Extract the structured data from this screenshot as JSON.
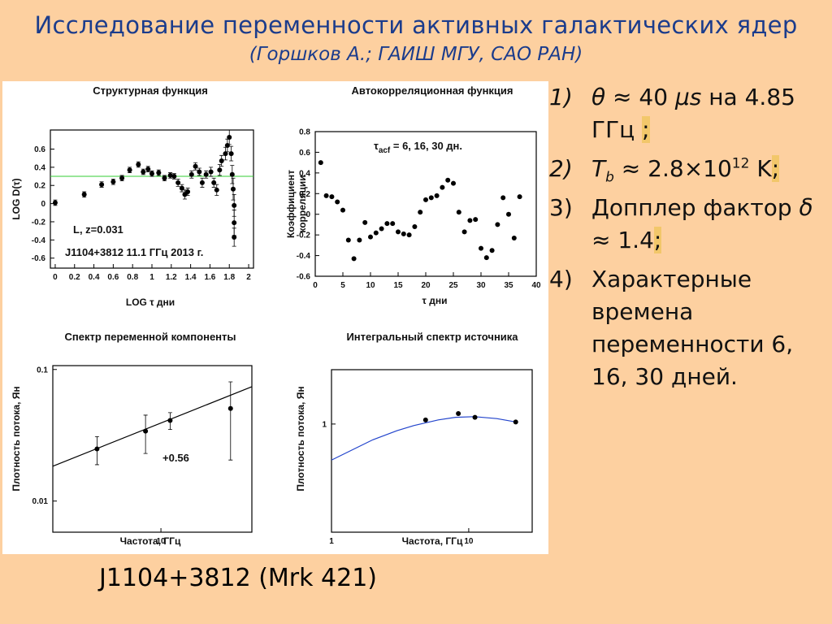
{
  "slide": {
    "title": "Исследование переменности активных галактических ядер",
    "subtitle": "(Горшков А.; ГАИШ МГУ, САО РАН)",
    "items": [
      {
        "number": "1)",
        "parts": [
          "θ",
          " ≈ 40 ",
          "μs",
          " на 4.85 ГГц ",
          ";"
        ]
      },
      {
        "number": "2)",
        "parts": [
          "T",
          "b",
          " ≈ 2.8×10",
          "12",
          " K",
          ";"
        ]
      },
      {
        "number": "3)",
        "parts": [
          "Допплер фактор ",
          "δ",
          " ≈ 1.4",
          ";"
        ]
      },
      {
        "number": "4)",
        "parts": [
          "Характерные времена переменности 6, 16, 30 дней."
        ]
      }
    ],
    "caption": "J1104+3812 (Mrk 421)"
  },
  "chart_data": [
    {
      "type": "scatter",
      "title": "Структурная функция",
      "xlabel": "LOG τ дни",
      "ylabel": "LOG D(τ)",
      "annotations": [
        "L,  z=0.031",
        "J1104+3812  11.1 ГГц  2013 г."
      ],
      "x": [
        0,
        0.3,
        0.48,
        0.6,
        0.69,
        0.77,
        0.86,
        0.91,
        0.96,
        1.0,
        1.07,
        1.13,
        1.19,
        1.23,
        1.27,
        1.31,
        1.34,
        1.37,
        1.41,
        1.45,
        1.49,
        1.52,
        1.56,
        1.61,
        1.64,
        1.67,
        1.7,
        1.72,
        1.76,
        1.78,
        1.8,
        1.82,
        1.83,
        1.84,
        1.85,
        1.85,
        1.85
      ],
      "values": [
        0.01,
        0.1,
        0.21,
        0.24,
        0.28,
        0.37,
        0.43,
        0.35,
        0.38,
        0.33,
        0.34,
        0.28,
        0.31,
        0.3,
        0.23,
        0.17,
        0.1,
        0.13,
        0.32,
        0.41,
        0.35,
        0.23,
        0.32,
        0.35,
        0.23,
        0.15,
        0.37,
        0.47,
        0.55,
        0.64,
        0.73,
        0.55,
        0.32,
        0.16,
        -0.02,
        -0.21,
        -0.37
      ],
      "errors": [
        0.03,
        0.03,
        0.03,
        0.03,
        0.03,
        0.03,
        0.03,
        0.03,
        0.03,
        0.03,
        0.03,
        0.03,
        0.03,
        0.03,
        0.04,
        0.04,
        0.05,
        0.04,
        0.04,
        0.04,
        0.04,
        0.05,
        0.04,
        0.05,
        0.05,
        0.06,
        0.06,
        0.06,
        0.07,
        0.07,
        0.08,
        0.08,
        0.1,
        0.12,
        0.12,
        0.14,
        0.1
      ],
      "hline": 0.3,
      "hline_color": "#33cc33",
      "color": "#000000",
      "xlim": [
        -0.05,
        2.05
      ],
      "ylim": [
        -0.71,
        0.81
      ],
      "xticks": [
        0,
        0.2,
        0.4,
        0.6,
        0.8,
        1,
        1.2,
        1.4,
        1.6,
        1.8,
        2
      ],
      "yticks": [
        -0.6,
        -0.4,
        -0.2,
        0,
        0.2,
        0.4,
        0.6
      ]
    },
    {
      "type": "scatter",
      "title": "Автокорреляционная функция",
      "xlabel": "τ дни",
      "ylabel": [
        "Коэффициент",
        "корреляции"
      ],
      "annotations": [
        [
          "τ",
          "acf",
          " = 6, 16, 30 дн."
        ]
      ],
      "x": [
        1,
        2,
        3,
        4,
        5,
        6,
        7,
        8,
        9,
        10,
        11,
        12,
        13,
        14,
        15,
        16,
        17,
        18,
        19,
        20,
        21,
        22,
        23,
        24,
        25,
        26,
        27,
        28,
        29,
        30,
        31,
        32,
        33,
        34,
        35,
        36,
        37
      ],
      "values": [
        0.5,
        0.18,
        0.17,
        0.12,
        0.04,
        -0.25,
        -0.43,
        -0.25,
        -0.08,
        -0.22,
        -0.18,
        -0.14,
        -0.09,
        -0.09,
        -0.17,
        -0.19,
        -0.2,
        -0.12,
        0.02,
        0.14,
        0.16,
        0.18,
        0.26,
        0.33,
        0.3,
        0.02,
        -0.17,
        -0.06,
        -0.05,
        -0.33,
        -0.42,
        -0.35,
        -0.1,
        0.16,
        0.0,
        -0.23,
        0.17
      ],
      "color": "#000000",
      "xlim": [
        0,
        40
      ],
      "ylim": [
        -0.6,
        0.8
      ],
      "xticks": [
        0,
        5,
        10,
        15,
        20,
        25,
        30,
        35,
        40
      ],
      "yticks": [
        -0.6,
        -0.4,
        -0.2,
        0,
        0.2,
        0.4,
        0.6,
        0.8
      ]
    },
    {
      "type": "scatter",
      "title": "Спектр переменной компоненты",
      "xlabel": "Частота, ГГц",
      "ylabel": "Плотность потока, Ян",
      "annotations": [
        "+0.56"
      ],
      "log_x": true,
      "log_y": true,
      "x": [
        4.85,
        8.4,
        11.1,
        22
      ],
      "values": [
        0.0249,
        0.034,
        0.041,
        0.0505
      ],
      "errors": [
        0.006,
        0.011,
        0.006,
        0.03
      ],
      "line": {
        "x": [
          2.94,
          28
        ],
        "y": [
          0.0184,
          0.074
        ],
        "color": "#000000"
      },
      "color": "#000000",
      "xlim": [
        2.94,
        28
      ],
      "ylim": [
        0.0058,
        0.107
      ],
      "xticks": [
        10
      ],
      "yticks": [
        0.01,
        0.1
      ]
    },
    {
      "type": "scatter",
      "title": "Интегральный спектр источника",
      "xlabel": "Частота, ГГц",
      "ylabel": "Плотность потока, Ян",
      "annotations": [],
      "log_x": true,
      "log_y": true,
      "x": [
        4.85,
        8.4,
        11.1,
        22
      ],
      "values": [
        1.06,
        1.16,
        1.1,
        1.03
      ],
      "line": {
        "x": [
          1,
          1.5,
          2,
          3,
          4,
          6,
          8,
          11,
          16,
          22
        ],
        "y": [
          0.6,
          0.71,
          0.8,
          0.91,
          0.98,
          1.06,
          1.1,
          1.11,
          1.08,
          1.03
        ],
        "color": "#2244cc"
      },
      "color": "#000000",
      "xlim": [
        1,
        29
      ],
      "ylim": [
        0.216,
        2.16
      ],
      "xticks": [
        1,
        10
      ],
      "yticks": [
        1
      ]
    }
  ]
}
